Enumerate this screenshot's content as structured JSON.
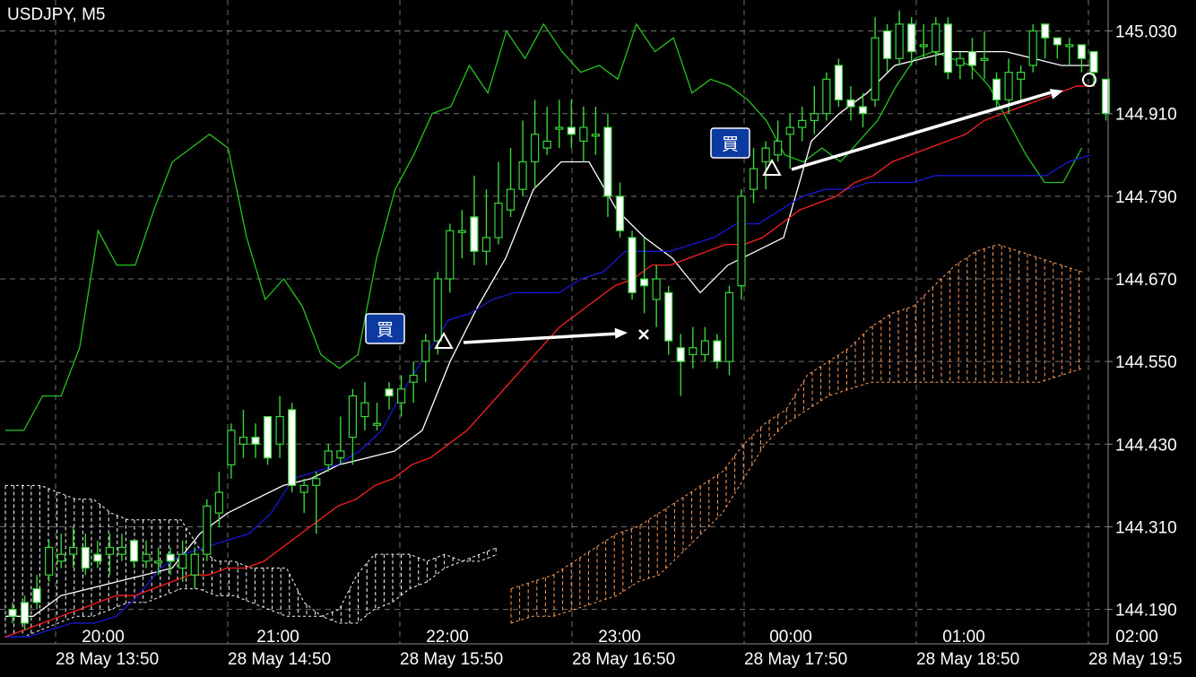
{
  "window": {
    "symbol_title": "USDJPY, M5"
  },
  "colors": {
    "background": "#000000",
    "grid": "#6f6f6f",
    "candle_up_body": "#000000",
    "candle_down_body": "#ffffff",
    "candle_wick": "#39d53a",
    "tenkan": "#ff2020",
    "kijun": "#1818d8",
    "chikou": "#22c41e",
    "upper_band": "#ffffff",
    "cloud": "#ffa05a",
    "cloud_dark": "#ffffff",
    "arrow": "#ffffff",
    "buy_badge_bg": "#0d3aa0",
    "marker": "#ffffff"
  },
  "chart_data": {
    "type": "candlestick",
    "symbol": "USDJPY",
    "timeframe": "M5",
    "y_axis_labels": [
      "145.030",
      "144.910",
      "144.790",
      "144.670",
      "144.550",
      "144.430",
      "144.310",
      "144.190"
    ],
    "ylim": [
      144.14,
      145.075
    ],
    "x_axis_labels_top": [
      "20:00",
      "21:00",
      "22:00",
      "23:00",
      "00:00",
      "01:00",
      "02:00"
    ],
    "x_axis_labels_bottom": [
      "28 May 13:50",
      "28 May 14:50",
      "28 May 15:50",
      "28 May 16:50",
      "28 May 17:50",
      "28 May 18:50",
      "28 May 19:5"
    ],
    "candles": [
      [
        144.19,
        144.18,
        144.2,
        144.17
      ],
      [
        144.2,
        144.17,
        144.21,
        144.16
      ],
      [
        144.22,
        144.2,
        144.24,
        144.19
      ],
      [
        144.24,
        144.28,
        144.29,
        144.23
      ],
      [
        144.26,
        144.27,
        144.3,
        144.25
      ],
      [
        144.27,
        144.28,
        144.31,
        144.25
      ],
      [
        144.28,
        144.25,
        144.3,
        144.24
      ],
      [
        144.27,
        144.26,
        144.29,
        144.25
      ],
      [
        144.27,
        144.28,
        144.3,
        144.24
      ],
      [
        144.27,
        144.28,
        144.3,
        144.26
      ],
      [
        144.29,
        144.26,
        144.29,
        144.25
      ],
      [
        144.26,
        144.27,
        144.29,
        144.25
      ],
      [
        144.26,
        144.26,
        144.28,
        144.24
      ],
      [
        144.27,
        144.26,
        144.28,
        144.24
      ],
      [
        144.25,
        144.27,
        144.29,
        144.23
      ],
      [
        144.24,
        144.27,
        144.28,
        144.22
      ],
      [
        144.27,
        144.34,
        144.35,
        144.26
      ],
      [
        144.33,
        144.36,
        144.39,
        144.31
      ],
      [
        144.4,
        144.45,
        144.46,
        144.38
      ],
      [
        144.43,
        144.44,
        144.48,
        144.41
      ],
      [
        144.44,
        144.43,
        144.46,
        144.41
      ],
      [
        144.47,
        144.41,
        144.47,
        144.4
      ],
      [
        144.43,
        144.47,
        144.5,
        144.41
      ],
      [
        144.48,
        144.37,
        144.49,
        144.36
      ],
      [
        144.36,
        144.37,
        144.38,
        144.33
      ],
      [
        144.37,
        144.38,
        144.39,
        144.3
      ],
      [
        144.4,
        144.42,
        144.43,
        144.39
      ],
      [
        144.41,
        144.42,
        144.47,
        144.4
      ],
      [
        144.44,
        144.5,
        144.51,
        144.4
      ],
      [
        144.47,
        144.49,
        144.52,
        144.45
      ],
      [
        144.46,
        144.46,
        144.49,
        144.45
      ],
      [
        144.51,
        144.5,
        144.52,
        144.48
      ],
      [
        144.49,
        144.51,
        144.53,
        144.47
      ],
      [
        144.52,
        144.53,
        144.55,
        144.49
      ],
      [
        144.55,
        144.58,
        144.59,
        144.52
      ],
      [
        144.58,
        144.67,
        144.68,
        144.56
      ],
      [
        144.67,
        144.74,
        144.75,
        144.65
      ],
      [
        144.74,
        144.74,
        144.77,
        144.7
      ],
      [
        144.76,
        144.71,
        144.82,
        144.69
      ],
      [
        144.71,
        144.73,
        144.8,
        144.69
      ],
      [
        144.73,
        144.78,
        144.84,
        144.72
      ],
      [
        144.77,
        144.8,
        144.86,
        144.76
      ],
      [
        144.8,
        144.84,
        144.9,
        144.79
      ],
      [
        144.84,
        144.88,
        144.93,
        144.8
      ],
      [
        144.86,
        144.87,
        144.92,
        144.85
      ],
      [
        144.89,
        144.89,
        144.93,
        144.86
      ],
      [
        144.89,
        144.88,
        144.93,
        144.86
      ],
      [
        144.87,
        144.89,
        144.92,
        144.84
      ],
      [
        144.88,
        144.88,
        144.92,
        144.85
      ],
      [
        144.89,
        144.79,
        144.91,
        144.76
      ],
      [
        144.79,
        144.74,
        144.81,
        144.73
      ],
      [
        144.73,
        144.65,
        144.74,
        144.64
      ],
      [
        144.67,
        144.66,
        144.73,
        144.62
      ],
      [
        144.64,
        144.67,
        144.69,
        144.6
      ],
      [
        144.65,
        144.58,
        144.66,
        144.56
      ],
      [
        144.57,
        144.55,
        144.59,
        144.5
      ],
      [
        144.56,
        144.57,
        144.6,
        144.54
      ],
      [
        144.56,
        144.58,
        144.6,
        144.55
      ],
      [
        144.58,
        144.55,
        144.59,
        144.54
      ],
      [
        144.55,
        144.65,
        144.66,
        144.53
      ],
      [
        144.66,
        144.79,
        144.8,
        144.64
      ],
      [
        144.8,
        144.83,
        144.86,
        144.78
      ],
      [
        144.84,
        144.86,
        144.87,
        144.8
      ],
      [
        144.85,
        144.87,
        144.9,
        144.84
      ],
      [
        144.88,
        144.89,
        144.91,
        144.83
      ],
      [
        144.89,
        144.9,
        144.92,
        144.87
      ],
      [
        144.9,
        144.91,
        144.95,
        144.88
      ],
      [
        144.91,
        144.96,
        144.97,
        144.9
      ],
      [
        144.98,
        144.93,
        144.99,
        144.92
      ],
      [
        144.93,
        144.92,
        144.95,
        144.9
      ],
      [
        144.92,
        144.91,
        144.94,
        144.89
      ],
      [
        144.93,
        145.02,
        145.05,
        144.92
      ],
      [
        145.03,
        144.99,
        145.04,
        144.97
      ],
      [
        144.99,
        145.04,
        145.06,
        144.98
      ],
      [
        145.04,
        145.0,
        145.05,
        144.98
      ],
      [
        145.01,
        145.01,
        145.04,
        144.99
      ],
      [
        145.0,
        145.04,
        145.05,
        144.98
      ],
      [
        145.04,
        144.97,
        145.05,
        144.96
      ],
      [
        144.98,
        144.99,
        145.0,
        144.96
      ],
      [
        145.0,
        144.98,
        145.02,
        144.96
      ],
      [
        144.99,
        144.99,
        145.03,
        144.96
      ],
      [
        144.96,
        144.93,
        144.97,
        144.92
      ],
      [
        144.93,
        144.97,
        144.99,
        144.91
      ],
      [
        144.96,
        144.97,
        144.98,
        144.93
      ],
      [
        144.98,
        145.03,
        145.04,
        144.97
      ],
      [
        145.04,
        145.02,
        145.04,
        144.99
      ],
      [
        145.02,
        145.01,
        145.02,
        144.99
      ],
      [
        145.01,
        145.01,
        145.02,
        144.98
      ],
      [
        145.01,
        144.99,
        145.0,
        144.97
      ],
      [
        145.0,
        144.97,
        144.99,
        144.95
      ],
      [
        144.96,
        144.91,
        144.96,
        144.9
      ]
    ],
    "series": [
      {
        "name": "tenkan",
        "values": [
          144.15,
          144.16,
          144.17,
          144.18,
          144.19,
          144.2,
          144.21,
          144.21,
          144.22,
          144.23,
          144.24,
          144.24,
          144.25,
          144.25,
          144.26,
          144.28,
          144.3,
          144.32,
          144.34,
          144.35,
          144.37,
          144.38,
          144.4,
          144.41,
          144.43,
          144.45,
          144.48,
          144.51,
          144.54,
          144.57,
          144.6,
          144.62,
          144.64,
          144.66,
          144.67,
          144.69,
          144.69,
          144.7,
          144.71,
          144.72,
          144.72,
          144.73,
          144.75,
          144.77,
          144.78,
          144.79,
          144.81,
          144.82,
          144.84,
          144.85,
          144.86,
          144.87,
          144.88,
          144.9,
          144.91,
          144.92,
          144.93,
          144.94,
          144.95,
          144.95
        ]
      },
      {
        "name": "kijun",
        "values": [
          144.15,
          144.15,
          144.16,
          144.17,
          144.17,
          144.18,
          144.21,
          144.25,
          144.27,
          144.28,
          144.29,
          144.3,
          144.33,
          144.38,
          144.39,
          144.4,
          144.42,
          144.45,
          144.51,
          144.56,
          144.61,
          144.62,
          144.64,
          144.65,
          144.65,
          144.65,
          144.67,
          144.68,
          144.71,
          144.71,
          144.71,
          144.72,
          144.73,
          144.75,
          144.75,
          144.77,
          144.79,
          144.8,
          144.8,
          144.81,
          144.81,
          144.81,
          144.82,
          144.82,
          144.82,
          144.82,
          144.82,
          144.82,
          144.84,
          144.85
        ]
      },
      {
        "name": "upper",
        "values": [
          144.18,
          144.18,
          144.21,
          144.22,
          144.23,
          144.24,
          144.25,
          144.3,
          144.33,
          144.35,
          144.37,
          144.38,
          144.4,
          144.41,
          144.42,
          144.45,
          144.55,
          144.63,
          144.7,
          144.8,
          144.84,
          144.84,
          144.77,
          144.73,
          144.7,
          144.65,
          144.69,
          144.71,
          144.73,
          144.87,
          144.91,
          144.94,
          144.98,
          144.99,
          145.0,
          145.0,
          145.0,
          144.99,
          144.98,
          144.98
        ]
      },
      {
        "name": "chikou",
        "values": [
          144.45,
          144.45,
          144.5,
          144.5,
          144.57,
          144.74,
          144.69,
          144.69,
          144.77,
          144.84,
          144.86,
          144.88,
          144.86,
          144.73,
          144.64,
          144.67,
          144.63,
          144.56,
          144.54,
          144.56,
          144.7,
          144.8,
          144.85,
          144.91,
          144.92,
          144.98,
          144.94,
          145.03,
          144.99,
          145.04,
          145.0,
          144.97,
          144.98,
          144.96,
          145.04,
          145.0,
          145.02,
          144.94,
          144.96,
          144.95,
          144.93,
          144.9,
          144.85,
          144.84,
          144.86,
          144.84,
          144.87,
          144.9,
          144.95,
          144.99,
          145.0,
          144.99,
          144.98,
          144.95,
          144.9,
          144.85,
          144.81,
          144.81,
          144.86
        ]
      },
      {
        "name": "cloud_dark",
        "values": [
          144.37,
          144.37,
          144.37,
          144.36,
          144.35,
          144.35,
          144.33,
          144.32,
          144.32,
          144.32,
          144.32,
          144.28,
          144.26,
          144.26,
          144.25,
          144.25,
          144.25,
          144.2,
          144.18,
          144.19,
          144.24,
          144.27,
          144.27,
          144.27,
          144.26,
          144.27,
          144.26,
          144.26,
          144.27
        ]
      },
      {
        "name": "cloud_light",
        "values": [
          144.15,
          144.15,
          144.16,
          144.17,
          144.18,
          144.18,
          144.19,
          144.2,
          144.2,
          144.21,
          144.22,
          144.22,
          144.21,
          144.21,
          144.2,
          144.19,
          144.18,
          144.18,
          144.18,
          144.17,
          144.17,
          144.19,
          144.2,
          144.22,
          144.23,
          144.25,
          144.26,
          144.27,
          144.28
        ]
      },
      {
        "name": "cloud_upper",
        "values": [
          144.22,
          144.23,
          144.24,
          144.26,
          144.28,
          144.3,
          144.31,
          144.33,
          144.35,
          144.37,
          144.39,
          144.43,
          144.46,
          144.48,
          144.53,
          144.55,
          144.57,
          144.6,
          144.62,
          144.63,
          144.66,
          144.69,
          144.71,
          144.72,
          144.71,
          144.7,
          144.69,
          144.68,
          144.67
        ]
      },
      {
        "name": "cloud_lower",
        "values": [
          144.17,
          144.18,
          144.18,
          144.19,
          144.2,
          144.21,
          144.23,
          144.24,
          144.27,
          144.3,
          144.33,
          144.38,
          144.43,
          144.46,
          144.48,
          144.5,
          144.51,
          144.52,
          144.52,
          144.52,
          144.52,
          144.52,
          144.52,
          144.52,
          144.52,
          144.52,
          144.53,
          144.54
        ]
      }
    ],
    "trades": [
      {
        "type": "buy",
        "entry_label": "買",
        "entry_price": 144.55,
        "exit_price": 144.57,
        "exit_marker": "×"
      },
      {
        "type": "buy",
        "entry_label": "買",
        "entry_price": 144.84,
        "exit_price": 145.0,
        "exit_marker": "○"
      }
    ]
  }
}
